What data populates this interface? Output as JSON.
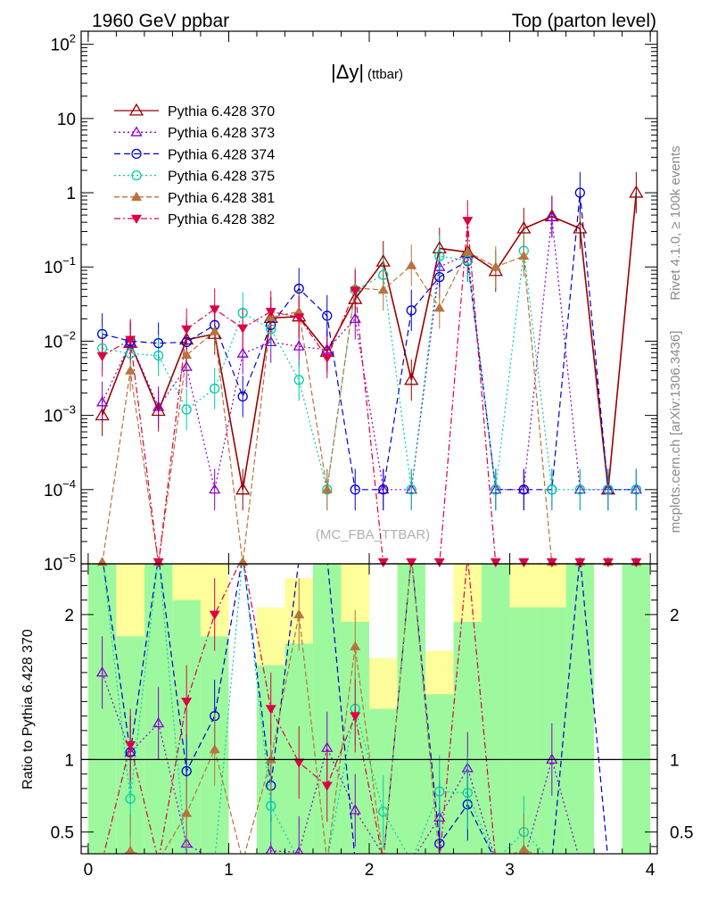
{
  "header": {
    "left": "1960 GeV ppbar",
    "right": "Top (parton level)"
  },
  "side": {
    "rivet": "Rivet 4.1.0, ≥ 100k events",
    "mcplots": "mcplots.cern.ch [arXiv:1306.3436]"
  },
  "chart_data": {
    "type": "line",
    "title": "|Δy|",
    "title_suffix": "(ttbar)",
    "watermark": "(MC_FBA_TTBAR)",
    "xlabel": "",
    "ylabel_ratio": "Ratio to Pythia 6.428 370",
    "xlim": [
      -0.05,
      4.05
    ],
    "ylim": [
      1e-05,
      150
    ],
    "ratio_ylim": [
      0.35,
      2.35
    ],
    "yscale": "log",
    "x_ticks": [
      0,
      1,
      2,
      3,
      4
    ],
    "x_tick_labels": [
      "0",
      "1",
      "2",
      "3",
      "4"
    ],
    "y_ticks": [
      100,
      10,
      1,
      0.1,
      0.01,
      0.001,
      0.0001,
      1e-05
    ],
    "y_tick_labels": [
      "10^2",
      "10",
      "1",
      "10^-1",
      "10^-2",
      "10^-3",
      "10^-4",
      "10^-5"
    ],
    "ratio_ticks": [
      2,
      1,
      0.5
    ],
    "ratio_tick_labels": [
      "2",
      "1",
      "0.5"
    ],
    "x": [
      0.1,
      0.3,
      0.5,
      0.7,
      0.9,
      1.1,
      1.3,
      1.5,
      1.7,
      1.9,
      2.1,
      2.3,
      2.5,
      2.7,
      2.9,
      3.1,
      3.3,
      3.5,
      3.7,
      3.9
    ],
    "legend_position": "top-left",
    "series": [
      {
        "name": "Pythia 6.428 370",
        "color": "#990000",
        "dash": "",
        "marker": "triangle-open",
        "values": [
          0.001,
          0.0095,
          0.00115,
          0.0105,
          0.0125,
          0.0001,
          0.0205,
          0.0215,
          0.0072,
          0.037,
          0.118,
          0.003,
          0.178,
          0.158,
          0.088,
          0.33,
          0.48,
          0.33,
          0.0001,
          1.0
        ]
      },
      {
        "name": "Pythia 6.428 373",
        "color": "#8800cc",
        "dash": "2,3",
        "marker": "triangle-open-small",
        "values": [
          0.0015,
          0.0095,
          0.0013,
          0.0045,
          0.0001,
          0.0068,
          0.0097,
          0.0085,
          0.0077,
          0.02,
          0.0001,
          0.0001,
          0.1,
          0.148,
          0.0001,
          0.0001,
          0.47,
          0.0001,
          0.0001,
          0.0001
        ]
      },
      {
        "name": "Pythia 6.428 374",
        "color": "#0000cc",
        "dash": "7,4",
        "marker": "circle-open",
        "values": [
          0.0125,
          0.01,
          0.0094,
          0.0097,
          0.0165,
          0.0018,
          0.0165,
          0.051,
          0.022,
          0.0001,
          0.0001,
          0.026,
          0.073,
          0.12,
          0.0001,
          0.0001,
          0.0001,
          1.0,
          0.0001,
          0.0001
        ]
      },
      {
        "name": "Pythia 6.428 375",
        "color": "#00ccaa",
        "dash": "2,3",
        "marker": "circle-open",
        "values": [
          0.008,
          0.0068,
          0.0064,
          0.0012,
          0.0023,
          0.024,
          0.0145,
          0.003,
          0.0001,
          0.049,
          0.078,
          0.0001,
          0.14,
          0.122,
          0.0001,
          0.165,
          0.0001,
          0.0001,
          0.0001,
          0.0001
        ]
      },
      {
        "name": "Pythia 6.428 381",
        "color": "#b8743c",
        "dash": "6,3",
        "marker": "triangle-filled",
        "values": [
          1e-05,
          0.004,
          1e-05,
          0.0065,
          0.0135,
          1e-05,
          0.021,
          0.025,
          0.0001,
          0.052,
          0.049,
          0.105,
          0.028,
          0.16,
          0.1,
          0.14,
          1e-05,
          1e-05,
          1e-05,
          1e-05
        ]
      },
      {
        "name": "Pythia 6.428 382",
        "color": "#dd0044",
        "dash": "7,3,2,3",
        "marker": "triangle-down-filled",
        "values": [
          0.0063,
          0.0105,
          1e-05,
          0.0145,
          0.027,
          0.015,
          0.025,
          0.021,
          0.006,
          0.048,
          1e-05,
          1e-05,
          1e-05,
          0.42,
          1e-05,
          1e-05,
          1e-05,
          1e-05,
          1e-05,
          1e-05
        ]
      }
    ],
    "ratio_series": [
      {
        "name": "Pythia 6.428 373",
        "values": [
          1.6,
          1.05,
          1.25,
          0.42,
          0.3,
          0.3,
          0.37,
          0.36,
          1.08,
          0.65,
          0.34,
          0.3,
          0.6,
          0.94,
          0.3,
          0.3,
          1.0,
          0.3,
          0.3,
          0.3
        ]
      },
      {
        "name": "Pythia 6.428 374",
        "values": [
          2.4,
          1.05,
          2.4,
          0.92,
          1.3,
          2.4,
          0.82,
          2.38,
          2.4,
          0.3,
          0.3,
          2.4,
          0.42,
          0.69,
          0.3,
          0.3,
          0.3,
          2.4,
          0.3,
          0.3
        ]
      },
      {
        "name": "Pythia 6.428 375",
        "values": [
          2.4,
          0.73,
          2.4,
          0.3,
          0.3,
          2.4,
          0.68,
          0.3,
          0.3,
          1.35,
          0.64,
          0.3,
          0.78,
          0.77,
          0.3,
          0.5,
          0.3,
          0.3,
          0.3,
          0.3
        ]
      },
      {
        "name": "Pythia 6.428 381",
        "values": [
          0.3,
          0.37,
          0.3,
          0.63,
          1.07,
          0.3,
          1.0,
          2.0,
          0.3,
          1.78,
          0.3,
          2.4,
          0.3,
          0.3,
          0.3,
          0.38,
          0.3,
          0.3,
          0.3,
          0.3
        ]
      },
      {
        "name": "Pythia 6.428 382",
        "values": [
          0.3,
          1.1,
          0.3,
          1.4,
          2.0,
          2.4,
          1.35,
          0.98,
          0.82,
          1.3,
          0.3,
          0.3,
          0.3,
          2.4,
          0.3,
          0.3,
          0.3,
          0.3,
          0.3,
          0.3
        ]
      }
    ],
    "bands": [
      {
        "x": [
          0.0,
          0.2
        ],
        "green": [
          0.35,
          2.35
        ],
        "yellow": [
          0.35,
          2.35
        ]
      },
      {
        "x": [
          0.2,
          0.4
        ],
        "green": [
          0.35,
          1.85
        ],
        "yellow": [
          0.35,
          2.35
        ]
      },
      {
        "x": [
          0.4,
          0.6
        ],
        "green": [
          0.35,
          2.35
        ],
        "yellow": [
          0.35,
          2.35
        ]
      },
      {
        "x": [
          0.6,
          0.8
        ],
        "green": [
          0.35,
          2.1
        ],
        "yellow": [
          0.35,
          2.35
        ]
      },
      {
        "x": [
          0.8,
          1.0
        ],
        "green": [
          0.35,
          1.85
        ],
        "yellow": [
          0.35,
          2.35
        ]
      },
      {
        "x": [
          1.2,
          1.4
        ],
        "green": [
          0.35,
          1.65
        ],
        "yellow": [
          0.35,
          2.05
        ]
      },
      {
        "x": [
          1.4,
          1.6
        ],
        "green": [
          0.35,
          1.8
        ],
        "yellow": [
          0.35,
          2.25
        ]
      },
      {
        "x": [
          1.6,
          1.8
        ],
        "green": [
          0.35,
          2.35
        ],
        "yellow": [
          0.35,
          2.35
        ]
      },
      {
        "x": [
          1.8,
          2.0
        ],
        "green": [
          0.35,
          1.95
        ],
        "yellow": [
          0.35,
          2.35
        ]
      },
      {
        "x": [
          2.0,
          2.2
        ],
        "green": [
          0.35,
          1.35
        ],
        "yellow": [
          0.35,
          1.7
        ]
      },
      {
        "x": [
          2.2,
          2.4
        ],
        "green": [
          0.35,
          2.35
        ],
        "yellow": [
          0.35,
          2.35
        ]
      },
      {
        "x": [
          2.4,
          2.6
        ],
        "green": [
          0.35,
          1.45
        ],
        "yellow": [
          0.35,
          1.75
        ]
      },
      {
        "x": [
          2.6,
          2.8
        ],
        "green": [
          0.35,
          1.95
        ],
        "yellow": [
          0.35,
          2.35
        ]
      },
      {
        "x": [
          2.8,
          3.0
        ],
        "green": [
          0.35,
          2.35
        ],
        "yellow": [
          0.35,
          2.35
        ]
      },
      {
        "x": [
          3.0,
          3.2
        ],
        "green": [
          0.35,
          2.05
        ],
        "yellow": [
          0.35,
          2.35
        ]
      },
      {
        "x": [
          3.2,
          3.4
        ],
        "green": [
          0.35,
          2.05
        ],
        "yellow": [
          0.35,
          2.35
        ]
      },
      {
        "x": [
          3.4,
          3.6
        ],
        "green": [
          0.35,
          2.35
        ],
        "yellow": [
          0.35,
          2.35
        ]
      },
      {
        "x": [
          3.8,
          4.0
        ],
        "green": [
          0.35,
          2.35
        ],
        "yellow": [
          0.35,
          2.35
        ]
      }
    ],
    "band_colors": {
      "green": "#9ef99e",
      "yellow": "#fefe9a"
    },
    "reference_line": 1
  }
}
